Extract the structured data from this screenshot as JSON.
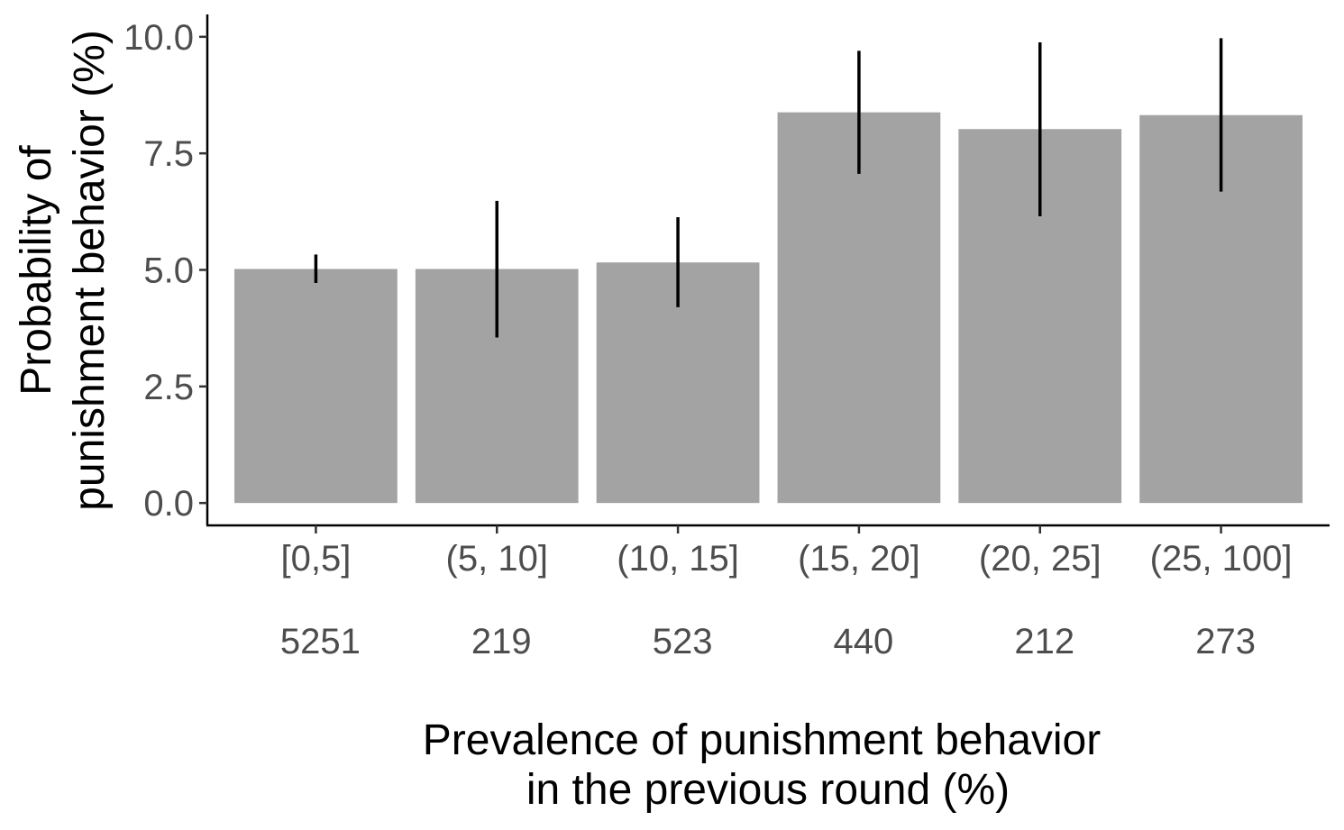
{
  "chart_data": {
    "type": "bar",
    "categories": [
      "[0,5]",
      "(5, 10]",
      "(10, 15]",
      "(15, 20]",
      "(20, 25]",
      "(25, 100]"
    ],
    "counts": [
      "5251",
      "219",
      "523",
      "440",
      "212",
      "273"
    ],
    "values": [
      5.02,
      5.02,
      5.16,
      8.38,
      8.02,
      8.32
    ],
    "error_low": [
      4.72,
      3.55,
      4.2,
      7.06,
      6.15,
      6.68
    ],
    "error_high": [
      5.33,
      6.48,
      6.13,
      9.7,
      9.88,
      9.97
    ],
    "ylim": [
      -0.48,
      10.48
    ],
    "yticks": [
      0,
      2.5,
      5,
      7.5,
      10
    ],
    "ytick_labels": [
      "0.0",
      "2.5",
      "5.0",
      "7.5",
      "10.0"
    ],
    "ylabel": [
      "Probability of",
      "punishment behavior (%)"
    ],
    "xlabel": [
      "Prevalence of punishment behavior",
      "in the previous round (%)"
    ],
    "bar_color": "#a3a3a3",
    "errorbar_color": "#000000",
    "grid": false,
    "legend": "none"
  }
}
